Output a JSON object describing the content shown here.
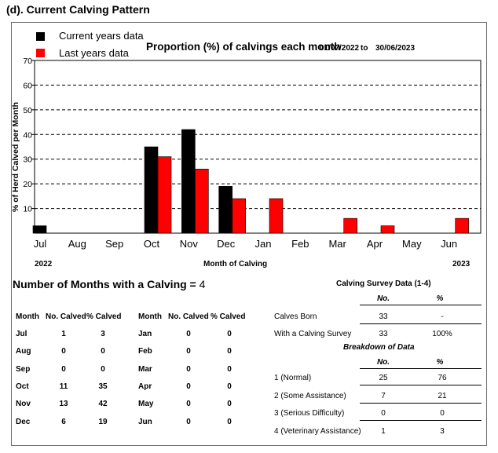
{
  "section_title": "(d). Current Calving Pattern",
  "legend": [
    {
      "label": "Current years data",
      "color": "#000000"
    },
    {
      "label": "Last years data",
      "color": "#ff0000"
    }
  ],
  "chart_title": "Proportion (%) of calvings each month",
  "date_from": "01/07/2022",
  "date_to_word": "to",
  "date_to": "30/06/2023",
  "chart_data": {
    "type": "bar",
    "categories": [
      "Jul",
      "Aug",
      "Sep",
      "Oct",
      "Nov",
      "Dec",
      "Jan",
      "Feb",
      "Mar",
      "Apr",
      "May",
      "Jun"
    ],
    "series": [
      {
        "name": "Current years data",
        "color": "#000000",
        "values": [
          3,
          0,
          0,
          35,
          42,
          19,
          0,
          0,
          0,
          0,
          0,
          0
        ]
      },
      {
        "name": "Last years data",
        "color": "#ff0000",
        "values": [
          0,
          0,
          0,
          31,
          26,
          14,
          14,
          0,
          6,
          3,
          0,
          6
        ]
      }
    ],
    "ylabel": "% of Herd Calved per Month",
    "xlabel": "Month of Calving",
    "ylim": [
      0,
      70
    ],
    "yticks": [
      10,
      20,
      30,
      40,
      50,
      60,
      70
    ],
    "grid": true,
    "year_start": "2022",
    "year_end": "2023"
  },
  "months_count": {
    "label": "Number of Months with a Calving = ",
    "value": "4"
  },
  "months_table": {
    "headers": [
      "Month",
      "No. Calved",
      "% Calved"
    ],
    "left": [
      {
        "month": "Jul",
        "calved": "1",
        "pct": "3"
      },
      {
        "month": "Aug",
        "calved": "0",
        "pct": "0"
      },
      {
        "month": "Sep",
        "calved": "0",
        "pct": "0"
      },
      {
        "month": "Oct",
        "calved": "11",
        "pct": "35"
      },
      {
        "month": "Nov",
        "calved": "13",
        "pct": "42"
      },
      {
        "month": "Dec",
        "calved": "6",
        "pct": "19"
      }
    ],
    "right": [
      {
        "month": "Jan",
        "calved": "0",
        "pct": "0"
      },
      {
        "month": "Feb",
        "calved": "0",
        "pct": "0"
      },
      {
        "month": "Mar",
        "calved": "0",
        "pct": "0"
      },
      {
        "month": "Apr",
        "calved": "0",
        "pct": "0"
      },
      {
        "month": "May",
        "calved": "0",
        "pct": "0"
      },
      {
        "month": "Jun",
        "calved": "0",
        "pct": "0"
      }
    ]
  },
  "survey": {
    "title": "Calving Survey Data (1-4)",
    "col_no": "No.",
    "col_pct": "%",
    "rows": [
      {
        "label": "Calves Born",
        "no": "33",
        "pct": "-"
      },
      {
        "label": "With a Calving Survey",
        "no": "33",
        "pct": "100%"
      }
    ],
    "breakdown_title": "Breakdown of Data",
    "breakdown": [
      {
        "label": "1 (Normal)",
        "no": "25",
        "pct": "76"
      },
      {
        "label": "2 (Some Assistance)",
        "no": "7",
        "pct": "21"
      },
      {
        "label": "3 (Serious Difficulty)",
        "no": "0",
        "pct": "0"
      },
      {
        "label": "4 (Veterinary Assistance)",
        "no": "1",
        "pct": "3"
      }
    ]
  }
}
